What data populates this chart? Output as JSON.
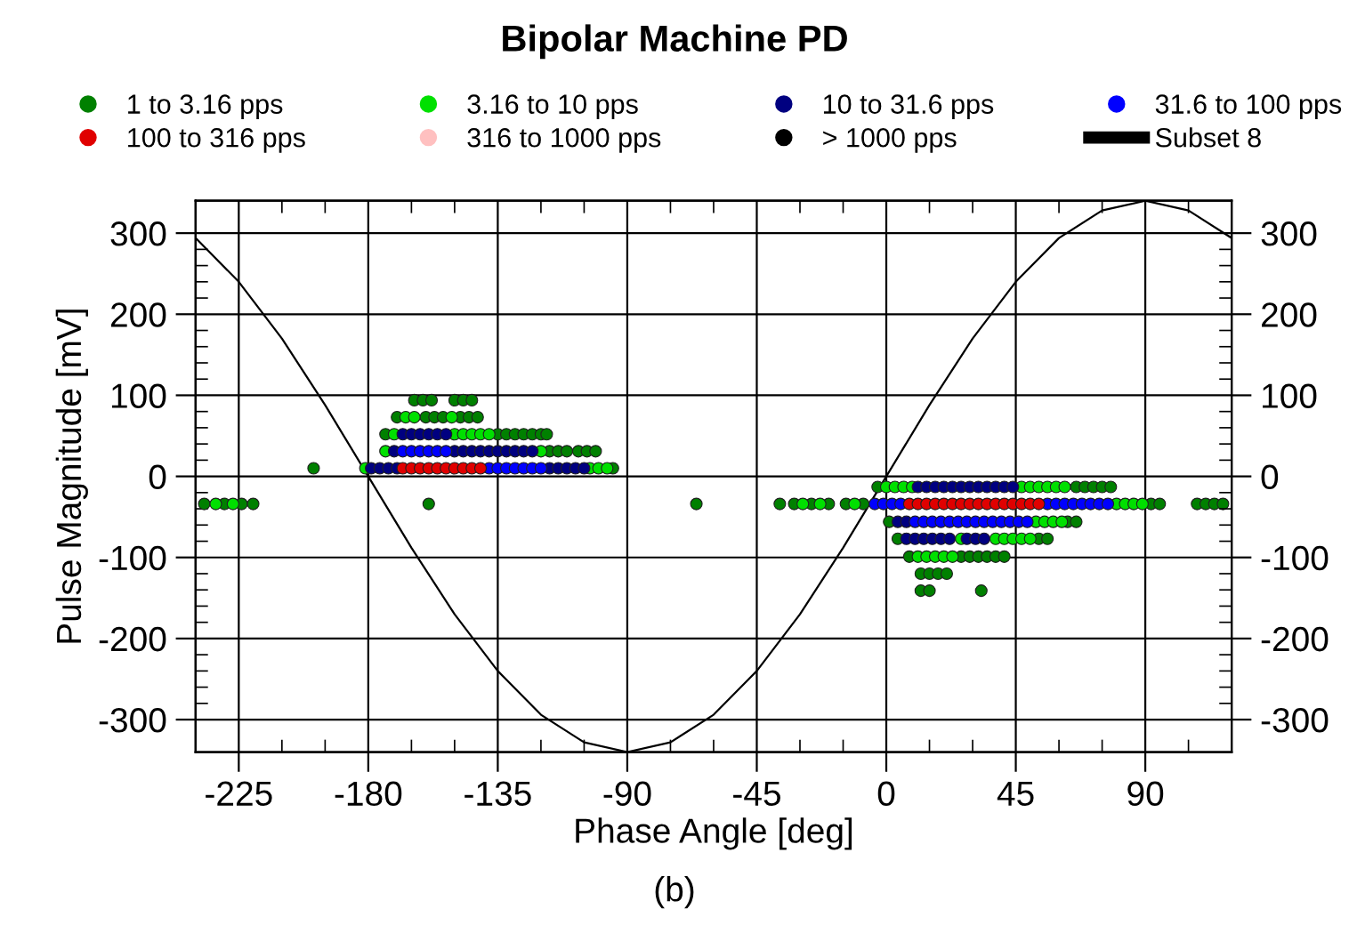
{
  "chart_data": {
    "type": "scatter",
    "title": "Bipolar Machine PD",
    "xlabel": "Phase Angle [deg]",
    "ylabel": "Pulse Magnitude [mV]",
    "annotations": [
      "(b)"
    ],
    "xlim": [
      -240,
      120
    ],
    "ylim": [
      -340,
      340
    ],
    "y2lim": [
      -340,
      340
    ],
    "xticks": [
      -225,
      {
        "value": -210,
        "label": null
      },
      {
        "value": -195,
        "label": null
      },
      -180,
      {
        "value": -165,
        "label": null
      },
      {
        "value": -150,
        "label": null
      },
      -135,
      {
        "value": -120,
        "label": null
      },
      {
        "value": -105,
        "label": null
      },
      -90,
      {
        "value": -75,
        "label": null
      },
      {
        "value": -60,
        "label": null
      },
      -45,
      {
        "value": -30,
        "label": null
      },
      {
        "value": -15,
        "label": null
      },
      0,
      {
        "value": 15,
        "label": null
      },
      {
        "value": 30,
        "label": null
      },
      45,
      {
        "value": 60,
        "label": null
      },
      {
        "value": 75,
        "label": null
      },
      90,
      {
        "value": 105,
        "label": null
      }
    ],
    "yticks": [
      -300,
      {
        "value": -280,
        "label": null
      },
      {
        "value": -260,
        "label": null
      },
      {
        "value": -240,
        "label": null
      },
      {
        "value": -220,
        "label": null
      },
      -200,
      {
        "value": -180,
        "label": null
      },
      {
        "value": -160,
        "label": null
      },
      {
        "value": -140,
        "label": null
      },
      {
        "value": -120,
        "label": null
      },
      -100,
      {
        "value": -80,
        "label": null
      },
      {
        "value": -60,
        "label": null
      },
      {
        "value": -40,
        "label": null
      },
      {
        "value": -20,
        "label": null
      },
      0,
      {
        "value": 20,
        "label": null
      },
      {
        "value": 40,
        "label": null
      },
      {
        "value": 60,
        "label": null
      },
      {
        "value": 80,
        "label": null
      },
      100,
      {
        "value": 120,
        "label": null
      },
      {
        "value": 140,
        "label": null
      },
      {
        "value": 160,
        "label": null
      },
      {
        "value": 180,
        "label": null
      },
      200,
      {
        "value": 220,
        "label": null
      },
      {
        "value": 240,
        "label": null
      },
      {
        "value": 260,
        "label": null
      },
      {
        "value": 280,
        "label": null
      },
      300
    ],
    "y2ticks": [
      -300,
      {
        "value": -280,
        "label": null
      },
      {
        "value": -260,
        "label": null
      },
      {
        "value": -240,
        "label": null
      },
      {
        "value": -220,
        "label": null
      },
      -200,
      {
        "value": -180,
        "label": null
      },
      {
        "value": -160,
        "label": null
      },
      {
        "value": -140,
        "label": null
      },
      {
        "value": -120,
        "label": null
      },
      -100,
      {
        "value": -80,
        "label": null
      },
      {
        "value": -60,
        "label": null
      },
      {
        "value": -40,
        "label": null
      },
      {
        "value": -20,
        "label": null
      },
      0,
      {
        "value": 20,
        "label": null
      },
      {
        "value": 40,
        "label": null
      },
      {
        "value": 60,
        "label": null
      },
      {
        "value": 80,
        "label": null
      },
      100,
      {
        "value": 120,
        "label": null
      },
      {
        "value": 140,
        "label": null
      },
      {
        "value": 160,
        "label": null
      },
      {
        "value": 180,
        "label": null
      },
      200,
      {
        "value": 220,
        "label": null
      },
      {
        "value": 240,
        "label": null
      },
      {
        "value": 260,
        "label": null
      },
      {
        "value": 280,
        "label": null
      },
      300
    ],
    "grid": true,
    "legend": "top",
    "marker": "circle",
    "series": [
      {
        "name": "1 to 3.16 pps",
        "color": "#008000",
        "x": [
          -164,
          -161,
          -158,
          -150,
          -147,
          -144,
          -170,
          -160,
          -157,
          -154,
          -148,
          -145,
          -142,
          -174,
          -135,
          -132,
          -129,
          -126,
          -123,
          -120,
          -118,
          -117,
          -114,
          -111,
          -107,
          -104,
          -101,
          -199,
          -95,
          -237,
          -230,
          -224,
          -220,
          -159,
          -66,
          -37,
          -32,
          -26,
          -20,
          -14,
          -8,
          92,
          95,
          108,
          111,
          114,
          117,
          -3,
          66,
          69,
          72,
          75,
          78,
          1,
          63,
          66,
          4,
          53,
          56,
          8,
          26,
          29,
          32,
          35,
          38,
          41,
          12,
          15,
          18,
          21,
          12,
          15,
          33
        ],
        "values": [
          94,
          94,
          94,
          94,
          94,
          94,
          73,
          73,
          73,
          73,
          73,
          73,
          73,
          52,
          52,
          52,
          52,
          52,
          52,
          52,
          52,
          31,
          31,
          31,
          31,
          31,
          31,
          10,
          10,
          -34,
          -34,
          -34,
          -34,
          -34,
          -34,
          -34,
          -34,
          -34,
          -34,
          -34,
          -34,
          -34,
          -34,
          -34,
          -34,
          -34,
          -34,
          -13,
          -13,
          -13,
          -13,
          -13,
          -13,
          -56,
          -56,
          -56,
          -77,
          -77,
          -77,
          -99,
          -99,
          -99,
          -99,
          -99,
          -99,
          -99,
          -120,
          -120,
          -120,
          -120,
          -141,
          -141,
          -141
        ]
      },
      {
        "name": "3.16 to 10 pps",
        "color": "#00e000",
        "x": [
          -167,
          -164,
          -151,
          -171,
          -150,
          -147,
          -144,
          -141,
          -138,
          -174,
          -120,
          -181,
          -103,
          -100,
          -97,
          -233,
          -227,
          -29,
          -23,
          -11,
          80,
          83,
          86,
          89,
          0,
          3,
          6,
          9,
          47,
          50,
          53,
          56,
          59,
          62,
          52,
          55,
          58,
          61,
          26,
          38,
          41,
          44,
          47,
          50,
          11,
          14,
          17,
          20,
          23
        ],
        "values": [
          73,
          73,
          73,
          52,
          52,
          52,
          52,
          52,
          52,
          31,
          31,
          10,
          10,
          10,
          10,
          -34,
          -34,
          -34,
          -34,
          -34,
          -34,
          -34,
          -34,
          -34,
          -13,
          -13,
          -13,
          -13,
          -13,
          -13,
          -13,
          -13,
          -13,
          -13,
          -56,
          -56,
          -56,
          -56,
          -77,
          -77,
          -77,
          -77,
          -77,
          -77,
          -99,
          -99,
          -99,
          -99,
          -99
        ]
      },
      {
        "name": "10 to 31.6 pps",
        "color": "#000080",
        "x": [
          -168,
          -165,
          -162,
          -159,
          -156,
          -153,
          -171,
          -150,
          -147,
          -144,
          -141,
          -138,
          -135,
          -132,
          -129,
          -126,
          -123,
          -179,
          -176,
          -173,
          -170,
          -117,
          -114,
          -111,
          -108,
          -105,
          11,
          14,
          17,
          20,
          23,
          26,
          29,
          32,
          35,
          38,
          41,
          44,
          4,
          7,
          7,
          10,
          13,
          16,
          19,
          22,
          28,
          31,
          34
        ],
        "values": [
          52,
          52,
          52,
          52,
          52,
          52,
          31,
          31,
          31,
          31,
          31,
          31,
          31,
          31,
          31,
          31,
          31,
          10,
          10,
          10,
          10,
          10,
          10,
          10,
          10,
          10,
          -13,
          -13,
          -13,
          -13,
          -13,
          -13,
          -13,
          -13,
          -13,
          -13,
          -13,
          -13,
          -56,
          -56,
          -77,
          -77,
          -77,
          -77,
          -77,
          -77,
          -77,
          -77,
          -77
        ]
      },
      {
        "name": "31.6 to 100 pps",
        "color": "#0000ff",
        "x": [
          -168,
          -165,
          -162,
          -159,
          -156,
          -153,
          -138,
          -135,
          -132,
          -129,
          -126,
          -123,
          -120,
          -4,
          -1,
          2,
          5,
          56,
          59,
          62,
          65,
          68,
          71,
          74,
          77,
          10,
          13,
          16,
          19,
          22,
          25,
          28,
          31,
          34,
          37,
          40,
          43,
          46,
          49
        ],
        "values": [
          31,
          31,
          31,
          31,
          31,
          31,
          10,
          10,
          10,
          10,
          10,
          10,
          10,
          -34,
          -34,
          -34,
          -34,
          -34,
          -34,
          -34,
          -34,
          -34,
          -34,
          -34,
          -34,
          -56,
          -56,
          -56,
          -56,
          -56,
          -56,
          -56,
          -56,
          -56,
          -56,
          -56,
          -56,
          -56,
          -56
        ]
      },
      {
        "name": "100 to 316 pps",
        "color": "#e00000",
        "x": [
          -168,
          -165,
          -162,
          -159,
          -156,
          -153,
          -150,
          -147,
          -144,
          -141,
          8,
          11,
          14,
          17,
          20,
          23,
          26,
          29,
          32,
          35,
          38,
          41,
          44,
          47,
          50,
          53
        ],
        "values": [
          10,
          10,
          10,
          10,
          10,
          10,
          10,
          10,
          10,
          10,
          -34,
          -34,
          -34,
          -34,
          -34,
          -34,
          -34,
          -34,
          -34,
          -34,
          -34,
          -34,
          -34,
          -34,
          -34,
          -34
        ]
      },
      {
        "name": "316 to 1000 pps",
        "color": "#ffc0c0"
      },
      {
        "name": "> 1000 pps",
        "color": "#000000"
      },
      {
        "name": "Subset 8",
        "type": "line",
        "color": "#000000",
        "marker": "none",
        "x": [
          -240,
          -225,
          -210,
          -195,
          -180,
          -165,
          -150,
          -135,
          -120,
          -105,
          -90,
          -75,
          -60,
          -45,
          -30,
          -15,
          0,
          15,
          30,
          45,
          60,
          75,
          90,
          105,
          120
        ],
        "values": [
          294,
          240,
          170,
          88,
          0,
          -88,
          -170,
          -240,
          -294,
          -328,
          -340,
          -328,
          -294,
          -240,
          -170,
          -88,
          0,
          88,
          170,
          240,
          294,
          328,
          340,
          328,
          294
        ]
      }
    ]
  }
}
